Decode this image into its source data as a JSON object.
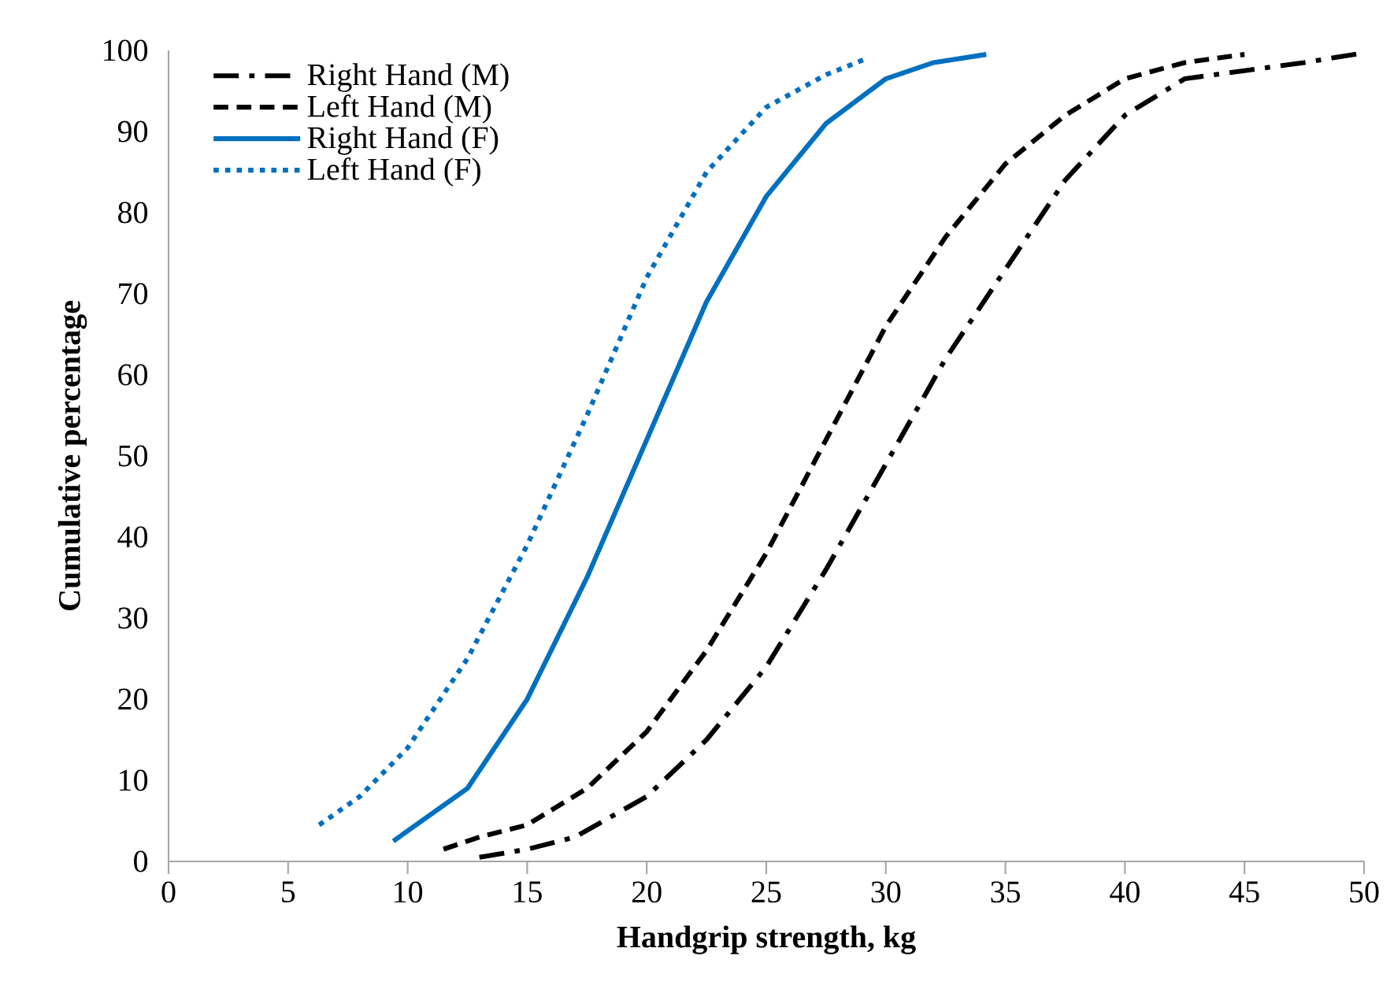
{
  "chart_data": {
    "type": "line",
    "xlabel": "Handgrip strength, kg",
    "ylabel": "Cumulative percentage",
    "xlim": [
      0,
      50
    ],
    "ylim": [
      0,
      100
    ],
    "xticks": [
      0,
      5,
      10,
      15,
      20,
      25,
      30,
      35,
      40,
      45,
      50
    ],
    "yticks": [
      0,
      10,
      20,
      30,
      40,
      50,
      60,
      70,
      80,
      90,
      100
    ],
    "grid": false,
    "legend": "top left",
    "marker": "none",
    "series": [
      {
        "name": "Right Hand (M)",
        "color": "#000000",
        "line_style": "dashdot",
        "x": [
          13,
          15,
          17,
          20,
          22.5,
          25,
          27.5,
          30,
          32.5,
          35,
          37.5,
          40,
          42.5,
          45,
          47.5,
          50
        ],
        "values": [
          0.5,
          1.5,
          3,
          8,
          15,
          24,
          36,
          49,
          62,
          73,
          84,
          92,
          96.5,
          97.5,
          98.5,
          99.7
        ]
      },
      {
        "name": "Left Hand (M)",
        "color": "#000000",
        "line_style": "dashed",
        "x": [
          11.5,
          13,
          15,
          17.5,
          20,
          22.5,
          25,
          27.5,
          30,
          32.5,
          35,
          37.5,
          40,
          42.5,
          45
        ],
        "values": [
          1.5,
          3,
          4.5,
          9,
          16,
          26,
          38,
          52,
          66,
          77,
          86,
          92,
          96.5,
          98.5,
          99.5
        ]
      },
      {
        "name": "Right Hand (F)",
        "color": "#0070c0",
        "line_style": "solid",
        "x": [
          9.4,
          12.5,
          15,
          17.5,
          20,
          22.5,
          25,
          27.5,
          30,
          32,
          34.2
        ],
        "values": [
          2.5,
          9,
          20,
          35,
          52,
          69,
          82,
          91,
          96.5,
          98.5,
          99.5
        ]
      },
      {
        "name": "Left Hand (F)",
        "color": "#0070c0",
        "line_style": "dotted",
        "x": [
          6.3,
          8,
          10,
          12.5,
          15,
          17.5,
          20,
          22.5,
          25,
          27.5,
          29.2
        ],
        "values": [
          4.5,
          8,
          14,
          25,
          39,
          55,
          72,
          85,
          93,
          97,
          99
        ]
      }
    ]
  }
}
